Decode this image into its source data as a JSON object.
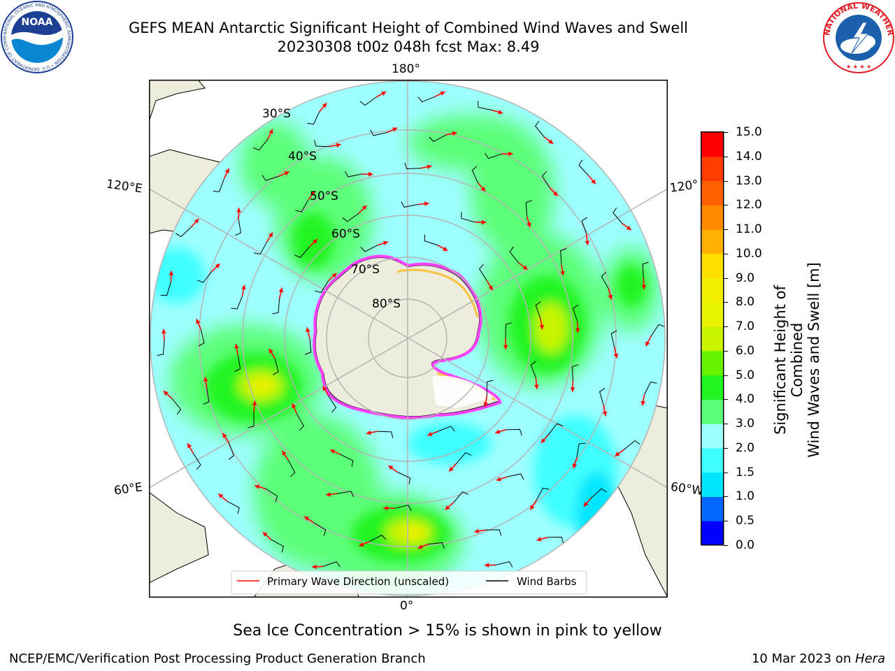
{
  "header": {
    "title_line1": "GEFS MEAN Antarctic Significant Height of Combined Wind Waves and Swell",
    "title_line2": "20230308 t00z 048h fcst   Max: 8.49"
  },
  "logos": {
    "noaa": {
      "center_text": "NOAA",
      "ring_text": "NATIONAL OCEANIC AND ATMOSPHERIC ADMINISTRATION • U.S. DEPARTMENT OF COMMERCE",
      "colors": {
        "navy": "#1c3f94",
        "sky": "#0a87d2",
        "white": "#ffffff"
      }
    },
    "nws": {
      "ring_text": "NATIONAL WEATHER SERVICE",
      "colors": {
        "red": "#e31b23",
        "blue": "#1b5fad",
        "cloud": "#ffffff"
      }
    }
  },
  "map": {
    "longitude_labels": {
      "top": "180°",
      "bottom": "0°",
      "left_upper": "120°E",
      "left_lower": "60°E",
      "right_upper": "120°",
      "right_lower": "60°W"
    },
    "latitude_labels": [
      "30°S",
      "40°S",
      "50°S",
      "60°S",
      "70°S",
      "80°S"
    ],
    "colors": {
      "land": "#eeecdc",
      "ocean_cyan": "#9effff",
      "green_light": "#5cff78",
      "green": "#22f422",
      "yellow_green": "#c8f400",
      "yellow": "#f0f000",
      "ice_pink": "#ff40ff",
      "arrow": "#ff0000",
      "barb": "#000000",
      "grid": "#b4b4b4"
    },
    "legend": {
      "items": [
        {
          "label": "Primary Wave Direction (unscaled)",
          "color": "#ff0000"
        },
        {
          "label": "Wind Barbs",
          "color": "#000000"
        }
      ]
    }
  },
  "colorbar": {
    "label_line1": "Significant Height of Combined",
    "label_line2": "Wind Waves and Swell [m]",
    "ticks": [
      "15.0",
      "14.0",
      "13.0",
      "12.0",
      "11.0",
      "10.0",
      "9.0",
      "8.0",
      "7.0",
      "6.0",
      "5.0",
      "4.0",
      "3.0",
      "2.0",
      "1.5",
      "1.0",
      "0.5",
      "0.0"
    ],
    "colors": [
      "#0000ff",
      "#0066ff",
      "#00e6ff",
      "#40ffff",
      "#9effff",
      "#5cff78",
      "#22f422",
      "#66f400",
      "#c8f400",
      "#e8f400",
      "#f0f000",
      "#ffe000",
      "#ffb000",
      "#ff8a00",
      "#ff6000",
      "#ff3c00",
      "#ff0000"
    ]
  },
  "note": "Sea Ice Concentration > 15% is shown in pink to yellow",
  "footer": {
    "left": "NCEP/EMC/Verification Post Processing Product Generation Branch",
    "right_prefix": "10 Mar 2023 on ",
    "right_host": "Hera"
  }
}
